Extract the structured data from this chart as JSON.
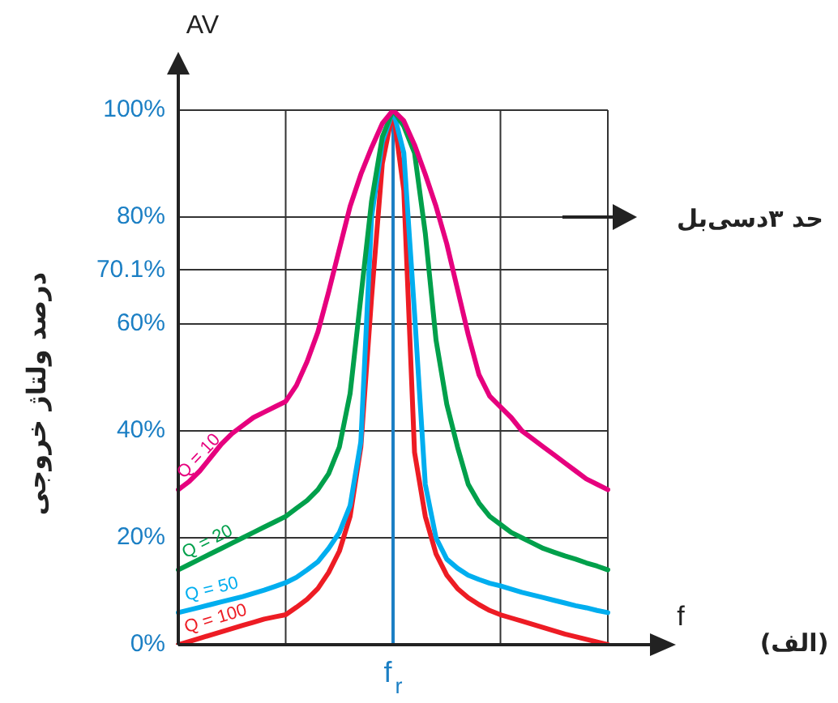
{
  "chart_data": {
    "type": "line",
    "ylabel": "درصد ولتاژ خروجی",
    "xlabel": "f",
    "annotations": [
      "AV",
      "حد ۳دسی‌بل",
      "(الف)"
    ],
    "categories": [
      null,
      null,
      null,
      null,
      null,
      null,
      null,
      null,
      null,
      null,
      null,
      null,
      null,
      null,
      null,
      null,
      null,
      null,
      null,
      null,
      "f$_{r}$",
      null,
      null,
      null,
      null,
      null,
      null,
      null,
      null,
      null,
      null,
      null,
      null,
      null,
      null,
      null,
      null,
      null,
      null,
      null,
      null
    ],
    "ylim": [
      0,
      100
    ],
    "yticks": [
      {
        "value": 0,
        "label": "0%"
      },
      {
        "value": 20,
        "label": "20%"
      },
      {
        "value": 40,
        "label": "40%"
      },
      {
        "value": 60,
        "label": "60%"
      },
      {
        "value": 70.1,
        "label": "70.1%"
      },
      {
        "value": 80,
        "label": "80%"
      },
      {
        "value": 100,
        "label": "100%"
      }
    ],
    "grid": true,
    "marker": "none",
    "line_style": "solid",
    "ref_lines": [
      {
        "axis": "x",
        "value": "f$_{r}$",
        "color": "#1b7fc4"
      }
    ],
    "series": [
      {
        "name": "Q = 10",
        "color": "#e6007e",
        "values": [
          29,
          30.5,
          32.5,
          35,
          37.5,
          39.5,
          41,
          42.5,
          43.5,
          44.5,
          45.5,
          48.5,
          53,
          58.5,
          66,
          74,
          82,
          88,
          93,
          97.5,
          100,
          98,
          93.5,
          88,
          82,
          75,
          66.5,
          58,
          50.5,
          46.5,
          44.5,
          42.5,
          40,
          38.5,
          37,
          35.5,
          34,
          32.5,
          31,
          30,
          29
        ]
      },
      {
        "name": "Q = 20",
        "color": "#00a04b",
        "values": [
          14,
          15,
          16,
          17,
          18,
          19,
          20,
          21,
          22,
          23,
          24,
          25.5,
          27,
          29,
          32,
          37,
          47,
          65,
          83,
          95,
          100,
          97,
          92,
          77,
          57,
          45,
          37,
          30,
          26.5,
          24,
          22.5,
          21,
          20,
          19,
          18,
          17.3,
          16.6,
          16,
          15.3,
          14.7,
          14
        ]
      },
      {
        "name": "Q = 50",
        "color": "#00aeef",
        "values": [
          6,
          6.5,
          7,
          7.5,
          8,
          8.5,
          9,
          9.6,
          10.2,
          10.9,
          11.6,
          12.6,
          14,
          15.5,
          18,
          21,
          26,
          38,
          80,
          94,
          100,
          92,
          62,
          30,
          20,
          16,
          14.3,
          13,
          12.2,
          11.5,
          11,
          10.4,
          9.8,
          9.3,
          8.8,
          8.3,
          7.8,
          7.3,
          6.9,
          6.4,
          6
        ]
      },
      {
        "name": "Q = 100",
        "color": "#ed1c24",
        "values": [
          0,
          0.6,
          1.2,
          1.8,
          2.4,
          3,
          3.6,
          4.2,
          4.8,
          5.2,
          5.6,
          7,
          8.5,
          10.5,
          13.5,
          17.5,
          24,
          37,
          65,
          90,
          100,
          85,
          36,
          24,
          17,
          13,
          10.5,
          8.8,
          7.5,
          6.4,
          5.6,
          5,
          4.4,
          3.8,
          3.2,
          2.6,
          2,
          1.5,
          1,
          0.5,
          0
        ]
      }
    ]
  }
}
